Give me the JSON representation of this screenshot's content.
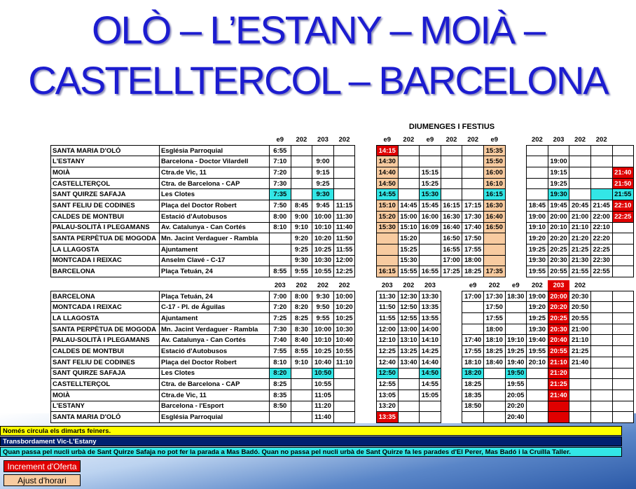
{
  "title": [
    "OLÒ – L’ESTANY – MOIÀ –",
    "CASTELLTERCOL – BARCELONA"
  ],
  "schedule_label": "DIUMENGES I FESTIUS",
  "sections": [
    {
      "routes": [
        "e9",
        "202",
        "203",
        "202",
        null,
        "e9",
        "202",
        "e9",
        "202",
        "202",
        "e9",
        null,
        "202",
        "203",
        "202",
        "202",
        null
      ],
      "rows": [
        {
          "stop": "SANTA MARIA D'OLÓ",
          "location": "Església Parroquial",
          "times": [
            "6:55",
            null,
            null,
            null,
            null,
            "14:15",
            null,
            null,
            null,
            null,
            "15:35",
            null,
            null,
            null,
            null,
            null,
            null
          ]
        },
        {
          "stop": "L'ESTANY",
          "location": "Barcelona - Doctor Vilardell",
          "times": [
            "7:10",
            null,
            "9:00",
            null,
            null,
            "14:30",
            null,
            null,
            null,
            null,
            "15:50",
            null,
            null,
            "19:00",
            null,
            null,
            null
          ]
        },
        {
          "stop": "MOIÀ",
          "location": "Ctra.de Vic, 11",
          "times": [
            "7:20",
            null,
            "9:15",
            null,
            null,
            "14:40",
            null,
            "15:15",
            null,
            null,
            "16:00",
            null,
            null,
            "19:15",
            null,
            null,
            "21:40"
          ]
        },
        {
          "stop": "CASTELLTERÇOL",
          "location": "Ctra. de Barcelona - CAP",
          "times": [
            "7:30",
            null,
            "9:25",
            null,
            null,
            "14:50",
            null,
            "15:25",
            null,
            null,
            "16:10",
            null,
            null,
            "19:25",
            null,
            null,
            "21:50"
          ]
        },
        {
          "stop": "SANT QUIRZE SAFAJA",
          "location": "Les Clotes",
          "times": [
            "7:35",
            null,
            "9:30",
            null,
            null,
            "14:55",
            null,
            "15:30",
            null,
            null,
            "16:15",
            null,
            null,
            "19:30",
            null,
            null,
            "21:55"
          ]
        },
        {
          "stop": "SANT FELIU DE CODINES",
          "location": "Plaça del Doctor Robert",
          "times": [
            "7:50",
            "8:45",
            "9:45",
            "11:15",
            null,
            "15:10",
            "14:45",
            "15:45",
            "16:15",
            "17:15",
            "16:30",
            null,
            "18:45",
            "19:45",
            "20:45",
            "21:45",
            "22:10"
          ]
        },
        {
          "stop": "CALDES DE MONTBUI",
          "location": "Estació d'Autobusos",
          "times": [
            "8:00",
            "9:00",
            "10:00",
            "11:30",
            null,
            "15:20",
            "15:00",
            "16:00",
            "16:30",
            "17:30",
            "16:40",
            null,
            "19:00",
            "20:00",
            "21:00",
            "22:00",
            "22:25"
          ]
        },
        {
          "stop": "PALAU-SOLITÀ I PLEGAMANS",
          "location": "Av. Catalunya - Can Cortés",
          "times": [
            "8:10",
            "9:10",
            "10:10",
            "11:40",
            null,
            "15:30",
            "15:10",
            "16:09",
            "16:40",
            "17:40",
            "16:50",
            null,
            "19:10",
            "20:10",
            "21:10",
            "22:10",
            null
          ]
        },
        {
          "stop": "SANTA PERPÈTUA DE MOGODA",
          "location": "Mn. Jacint Verdaguer - Rambla",
          "times": [
            null,
            "9:20",
            "10:20",
            "11:50",
            null,
            null,
            "15:20",
            null,
            "16:50",
            "17:50",
            null,
            null,
            "19:20",
            "20:20",
            "21:20",
            "22:20",
            null
          ]
        },
        {
          "stop": "LA LLAGOSTA",
          "location": "Ajuntament",
          "times": [
            null,
            "9:25",
            "10:25",
            "11:55",
            null,
            null,
            "15:25",
            null,
            "16:55",
            "17:55",
            null,
            null,
            "19:25",
            "20:25",
            "21:25",
            "22:25",
            null
          ]
        },
        {
          "stop": "MONTCADA I REIXAC",
          "location": "Anselm Clavé - C-17",
          "times": [
            null,
            "9:30",
            "10:30",
            "12:00",
            null,
            null,
            "15:30",
            null,
            "17:00",
            "18:00",
            null,
            null,
            "19:30",
            "20:30",
            "21:30",
            "22:30",
            null
          ]
        },
        {
          "stop": "BARCELONA",
          "location": "Plaça Tetuán, 24",
          "times": [
            "8:55",
            "9:55",
            "10:55",
            "12:25",
            null,
            "16:15",
            "15:55",
            "16:55",
            "17:25",
            "18:25",
            "17:35",
            null,
            "19:55",
            "20:55",
            "21:55",
            "22:55",
            null
          ]
        }
      ]
    },
    {
      "routes": [
        "203",
        "202",
        "202",
        "202",
        null,
        "203",
        "202",
        "203",
        null,
        "e9",
        "202",
        "e9",
        "202",
        "203",
        "202",
        null,
        null
      ],
      "rows": [
        {
          "stop": "BARCELONA",
          "location": "Plaça Tetuán, 24",
          "times": [
            "7:00",
            "8:00",
            "9:30",
            "10:00",
            null,
            "11:30",
            "12:30",
            "13:30",
            null,
            "17:00",
            "17:30",
            "18:30",
            "19:00",
            "20:00",
            "20:30",
            null,
            null
          ]
        },
        {
          "stop": "MONTCADA I REIXAC",
          "location": "C-17 - Pl. de Águilas",
          "times": [
            "7:20",
            "8:20",
            "9:50",
            "10:20",
            null,
            "11:50",
            "12:50",
            "13:35",
            null,
            null,
            "17:50",
            null,
            "19:20",
            "20:20",
            "20:50",
            null,
            null
          ]
        },
        {
          "stop": "LA LLAGOSTA",
          "location": "Ajuntament",
          "times": [
            "7:25",
            "8:25",
            "9:55",
            "10:25",
            null,
            "11:55",
            "12:55",
            "13:55",
            null,
            null,
            "17:55",
            null,
            "19:25",
            "20:25",
            "20:55",
            null,
            null
          ]
        },
        {
          "stop": "SANTA PERPÈTUA DE MOGODA",
          "location": "Mn. Jacint Verdaguer - Rambla",
          "times": [
            "7:30",
            "8:30",
            "10:00",
            "10:30",
            null,
            "12:00",
            "13:00",
            "14:00",
            null,
            null,
            "18:00",
            null,
            "19:30",
            "20:30",
            "21:00",
            null,
            null
          ]
        },
        {
          "stop": "PALAU-SOLITÀ I PLEGAMANS",
          "location": "Av. Catalunya - Can Cortés",
          "times": [
            "7:40",
            "8:40",
            "10:10",
            "10:40",
            null,
            "12:10",
            "13:10",
            "14:10",
            null,
            "17:40",
            "18:10",
            "19:10",
            "19:40",
            "20:40",
            "21:10",
            null,
            null
          ]
        },
        {
          "stop": "CALDES DE MONTBUI",
          "location": "Estació d'Autobusos",
          "times": [
            "7:55",
            "8:55",
            "10:25",
            "10:55",
            null,
            "12:25",
            "13:25",
            "14:25",
            null,
            "17:55",
            "18:25",
            "19:25",
            "19:55",
            "20:55",
            "21:25",
            null,
            null
          ]
        },
        {
          "stop": "SANT FELIU DE CODINES",
          "location": "Plaça del Doctor Robert",
          "times": [
            "8:10",
            "9:10",
            "10:40",
            "11:10",
            null,
            "12:40",
            "13:40",
            "14:40",
            null,
            "18:10",
            "18:40",
            "19:40",
            "20:10",
            "21:10",
            "21:40",
            null,
            null
          ]
        },
        {
          "stop": "SANT QUIRZE SAFAJA",
          "location": "Les Clotes",
          "times": [
            "8:20",
            null,
            "10:50",
            null,
            null,
            "12:50",
            null,
            "14:50",
            null,
            "18:20",
            null,
            "19:50",
            null,
            "21:20",
            null,
            null,
            null
          ]
        },
        {
          "stop": "CASTELLTERÇOL",
          "location": "Ctra. de Barcelona - CAP",
          "times": [
            "8:25",
            null,
            "10:55",
            null,
            null,
            "12:55",
            null,
            "14:55",
            null,
            "18:25",
            null,
            "19:55",
            null,
            "21:25",
            null,
            null,
            null
          ]
        },
        {
          "stop": "MOIÀ",
          "location": "Ctra.de Vic, 11",
          "times": [
            "8:35",
            null,
            "11:05",
            null,
            null,
            "13:05",
            null,
            "15:05",
            null,
            "18:35",
            null,
            "20:05",
            null,
            "21:40",
            null,
            null,
            null
          ]
        },
        {
          "stop": "L'ESTANY",
          "location": "Barcelona - l'Esport",
          "times": [
            "8:50",
            null,
            "11:20",
            null,
            null,
            "13:20",
            null,
            null,
            null,
            "18:50",
            null,
            "20:20",
            null,
            null,
            null,
            null,
            null
          ]
        },
        {
          "stop": "SANTA MARIA D'OLÓ",
          "location": "Església Parroquial",
          "times": [
            null,
            null,
            "11:40",
            null,
            null,
            "13:35",
            null,
            null,
            null,
            null,
            null,
            "20:40",
            null,
            null,
            null,
            null,
            null
          ]
        }
      ]
    }
  ],
  "notes": [
    "Només circula els dimarts feiners.",
    "Transbordament Vic-L'Estany",
    "Quan passa pel nucli urbà de Sant Quirze Safaja no pot fer la parada a Mas Badó. Quan no passa pel nucli urbà de Sant Quirze fa les parades d'El Perer, Mas Badó i la Cruïlla Taller."
  ],
  "legend": [
    "Increment d'Oferta",
    "Ajust d'horari"
  ]
}
